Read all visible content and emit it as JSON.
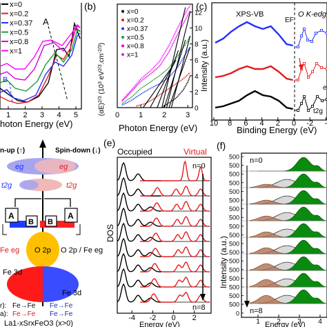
{
  "panel_a": {
    "legend": [
      "x=0",
      "x=0.2",
      "x=0.37",
      "x=0.5",
      "x=0.8",
      "x=1"
    ],
    "series_colors": [
      "#000000",
      "#e41a1c",
      "#2030ff",
      "#1a9a3a",
      "#d400d4",
      "#ff00ff"
    ],
    "peak_labels": [
      "A",
      "B"
    ],
    "xlabel": "hoton Energy (eV)",
    "xticks": [
      "1",
      "2",
      "3",
      "4",
      "5"
    ]
  },
  "panel_b": {
    "letter": "(b)",
    "legend": [
      "x=0",
      "x=0.2",
      "x=0.37",
      "x=0.5",
      "x=0.8",
      "x=1"
    ],
    "ylabel": "(αE)2/3 (103 eV2/3.cm-2/3)",
    "ylabel_parts": [
      "(αE)",
      "2/3",
      " (10",
      "3",
      " eV",
      "2/3",
      ".cm",
      "-2/3",
      ")"
    ],
    "xlabel": "Photon Energy (eV)",
    "xticks": [
      "0",
      "1",
      "2",
      "3"
    ],
    "yticks": [
      "0",
      "2",
      "4",
      "6",
      "8",
      "10",
      "12"
    ]
  },
  "panel_c": {
    "letter": "(c)",
    "ylabel": "Intensity (a.u.)",
    "xlabel": "Binding Energy (eV)",
    "xticks": [
      "10",
      "8",
      "6",
      "4",
      "2",
      "0",
      "-2",
      "-"
    ],
    "text_xps": "XPS-VB",
    "text_ef": "EF",
    "text_ok": "O K-edg",
    "text_t2g": "t2g",
    "text_e": "e"
  },
  "panel_d": {
    "spin_up": "n-up (↑)",
    "spin_down": "Spin-down (↓)",
    "eg_left": "eg",
    "eg_right": "eg",
    "t2g_left": "t2g",
    "t2g_right": "t2g",
    "box_a": "A",
    "box_b": "B",
    "o2p": "O 2p",
    "o2p_right": "O 2p / Fe eg",
    "fe_eg_left": "Fe eg",
    "fe3d_left": "Fe 3d",
    "fe3d_right": "Fe 3d",
    "row1_label": "r):",
    "row2_label": "a):",
    "row1_left": "Fe→Fe",
    "row1_right": "Fe→Fe",
    "row2_left": "Fe→Fe",
    "row2_right": "Fe→Fe",
    "formula": "La1-xSrxFeO3 (x>0)"
  },
  "panel_e": {
    "letter": "(e)",
    "occupied": "Occupied",
    "virtual": "Virtual",
    "ylabel": "DOS",
    "xlabel": "Energy (eV)",
    "xticks": [
      "-4",
      "-2",
      "0",
      "2"
    ],
    "n_top": "n=0",
    "n_bottom": "n=8"
  },
  "panel_f": {
    "letter": "(f)",
    "ylabel": "Intensity (a.u.)",
    "xlabel": "Energy (eV)",
    "xticks": [
      "1",
      "2",
      "3",
      "4"
    ],
    "yticks": [
      "500",
      "500",
      "500",
      "500",
      "500",
      "500",
      "500",
      "500",
      "500",
      "500",
      "500",
      "500",
      "500",
      "500",
      "500",
      "500",
      "500",
      "500",
      "0"
    ],
    "n_top": "n=0",
    "n_bottom": "n=8"
  }
}
